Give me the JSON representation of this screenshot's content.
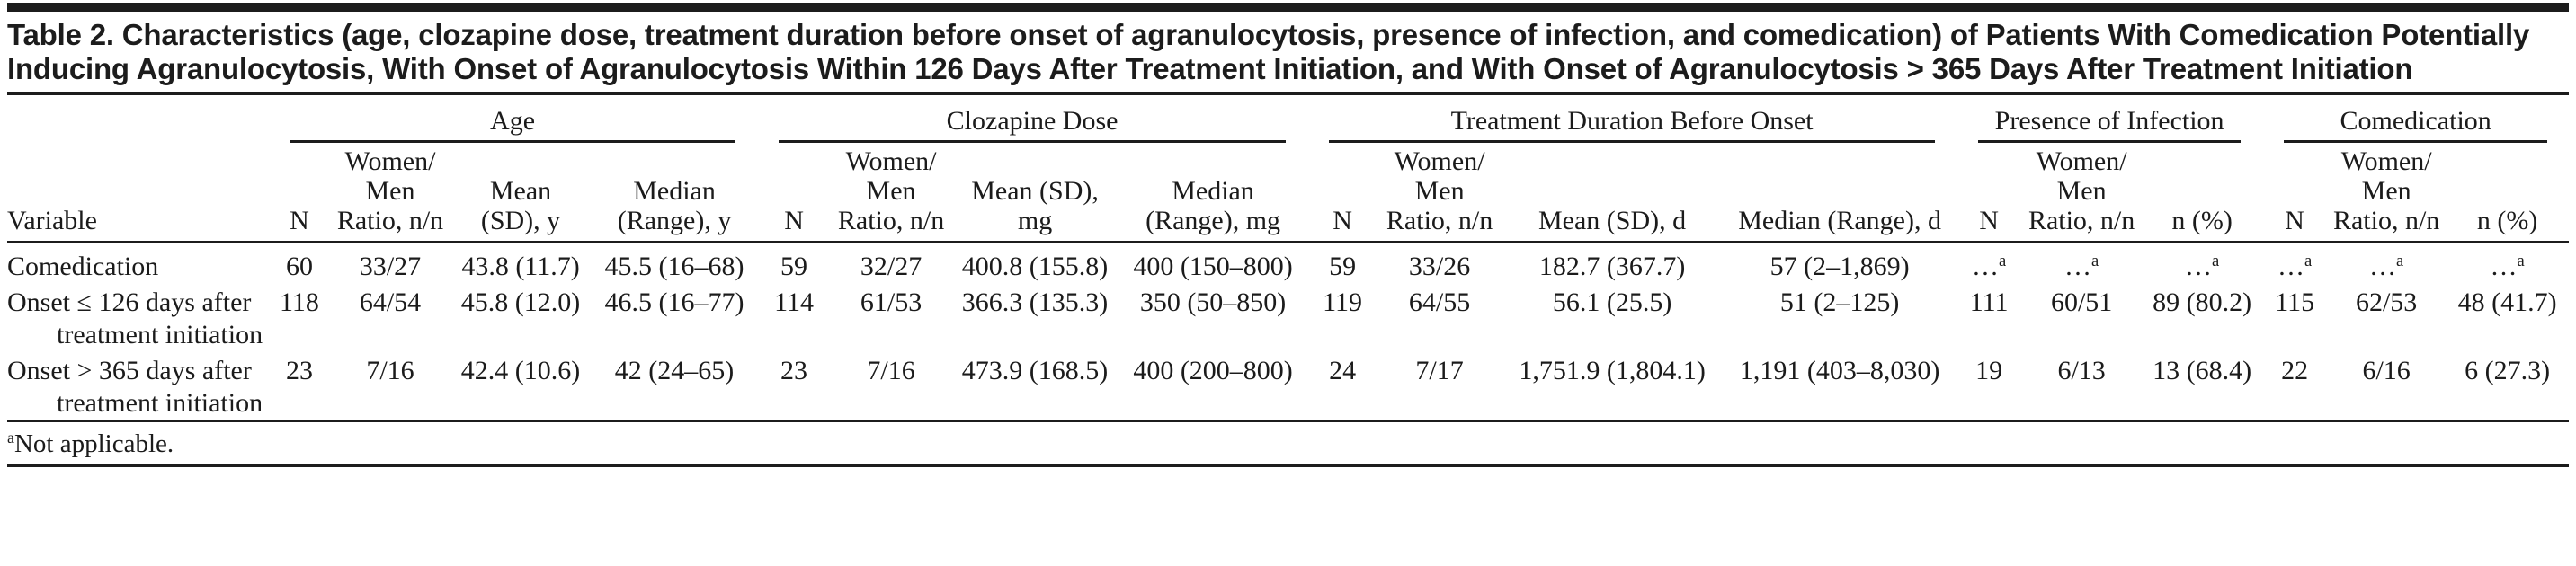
{
  "title": "Table 2. Characteristics (age, clozapine dose, treatment duration before onset of agranulocytosis, presence of infection, and comedication) of Patients With Comedication Potentially Inducing Agranulocytosis, With Onset of Agranulocytosis Within 126 Days After Treatment Initiation, and With Onset of Agranulocytosis > 365 Days After Treatment Initiation",
  "colors": {
    "text": "#1b1b1b",
    "rules": "#1c1c1c",
    "top_bar": "#1c1c1c",
    "background": "#ffffff"
  },
  "table": {
    "stub_header": "Variable",
    "groups": [
      {
        "label": "Age",
        "columns": [
          "N",
          "Women/\nMen\nRatio, n/n",
          "Mean\n(SD), y",
          "Median\n(Range), y"
        ]
      },
      {
        "label": "Clozapine Dose",
        "columns": [
          "N",
          "Women/\nMen\nRatio, n/n",
          "Mean (SD),\nmg",
          "Median\n(Range), mg"
        ]
      },
      {
        "label": "Treatment Duration Before Onset",
        "columns": [
          "N",
          "Women/\nMen\nRatio, n/n",
          "Mean (SD), d",
          "Median (Range), d"
        ]
      },
      {
        "label": "Presence of Infection",
        "columns": [
          "N",
          "Women/\nMen\nRatio, n/n",
          "n (%)"
        ]
      },
      {
        "label": "Comedication",
        "columns": [
          "N",
          "Women/\nMen\nRatio, n/n",
          "n (%)"
        ]
      }
    ],
    "rows": [
      {
        "label": "Comedication",
        "cells": [
          "60",
          "33/27",
          "43.8 (11.7)",
          "45.5 (16–68)",
          "59",
          "32/27",
          "400.8 (155.8)",
          "400 (150–800)",
          "59",
          "33/26",
          "182.7 (367.7)",
          "57 (2–1,869)",
          {
            "text": "…",
            "sup": "a"
          },
          {
            "text": "…",
            "sup": "a"
          },
          {
            "text": "…",
            "sup": "a"
          },
          {
            "text": "…",
            "sup": "a"
          },
          {
            "text": "…",
            "sup": "a"
          },
          {
            "text": "…",
            "sup": "a"
          }
        ]
      },
      {
        "label": "Onset ≤ 126 days after treatment initiation",
        "cells": [
          "118",
          "64/54",
          "45.8 (12.0)",
          "46.5 (16–77)",
          "114",
          "61/53",
          "366.3 (135.3)",
          "350 (50–850)",
          "119",
          "64/55",
          "56.1 (25.5)",
          "51 (2–125)",
          "111",
          "60/51",
          "89 (80.2)",
          "115",
          "62/53",
          "48 (41.7)"
        ]
      },
      {
        "label": "Onset > 365 days after treatment initiation",
        "cells": [
          "23",
          "7/16",
          "42.4 (10.6)",
          "42 (24–65)",
          "23",
          "7/16",
          "473.9 (168.5)",
          "400 (200–800)",
          "24",
          "7/17",
          "1,751.9 (1,804.1)",
          "1,191 (403–8,030)",
          "19",
          "6/13",
          "13 (68.4)",
          "22",
          "6/16",
          "6 (27.3)"
        ]
      }
    ],
    "footnote": {
      "sup": "a",
      "text": "Not applicable."
    }
  }
}
